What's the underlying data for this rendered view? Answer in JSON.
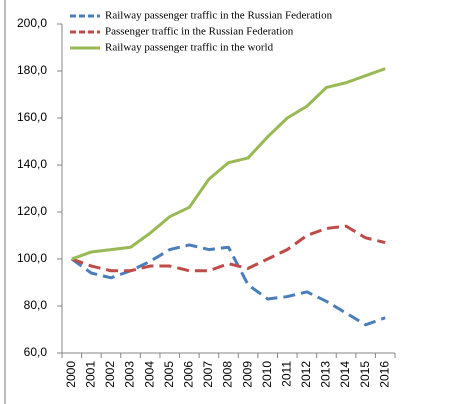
{
  "chart_data": {
    "type": "line",
    "categories": [
      "2000",
      "2001",
      "2002",
      "2003",
      "2004",
      "2005",
      "2006",
      "2007",
      "2008",
      "2009",
      "2010",
      "2011",
      "2012",
      "2013",
      "2014",
      "2015",
      "2016"
    ],
    "series": [
      {
        "name": "Railway passenger traffic in the Russian Federation",
        "color": "#4a7ebb",
        "linestyle": "dashed",
        "values": [
          100,
          94,
          92,
          95,
          99,
          104,
          106,
          104,
          105,
          89,
          83,
          84,
          86,
          82,
          77,
          72,
          75
        ]
      },
      {
        "name": "Passenger traffic in the Russian Federation",
        "color": "#be4b48",
        "linestyle": "dashed",
        "values": [
          100,
          97,
          95,
          95,
          97,
          97,
          95,
          95,
          98,
          96,
          100,
          104,
          110,
          113,
          114,
          109,
          107
        ]
      },
      {
        "name": "Railway passenger traffic in the world",
        "color": "#98b954",
        "linestyle": "solid",
        "values": [
          100,
          103,
          104,
          105,
          111,
          118,
          122,
          134,
          141,
          143,
          152,
          160,
          165,
          173,
          175,
          178,
          181
        ]
      }
    ],
    "ylim": [
      60,
      200
    ],
    "yticks": [
      {
        "value": 60,
        "label": "60,0"
      },
      {
        "value": 80,
        "label": "80,0"
      },
      {
        "value": 100,
        "label": "100,0"
      },
      {
        "value": 120,
        "label": "120,0"
      },
      {
        "value": 140,
        "label": "140,0"
      },
      {
        "value": 160,
        "label": "160,0"
      },
      {
        "value": 180,
        "label": "180,0"
      },
      {
        "value": 200,
        "label": "200,0"
      }
    ],
    "grid": false,
    "legend": "top"
  }
}
